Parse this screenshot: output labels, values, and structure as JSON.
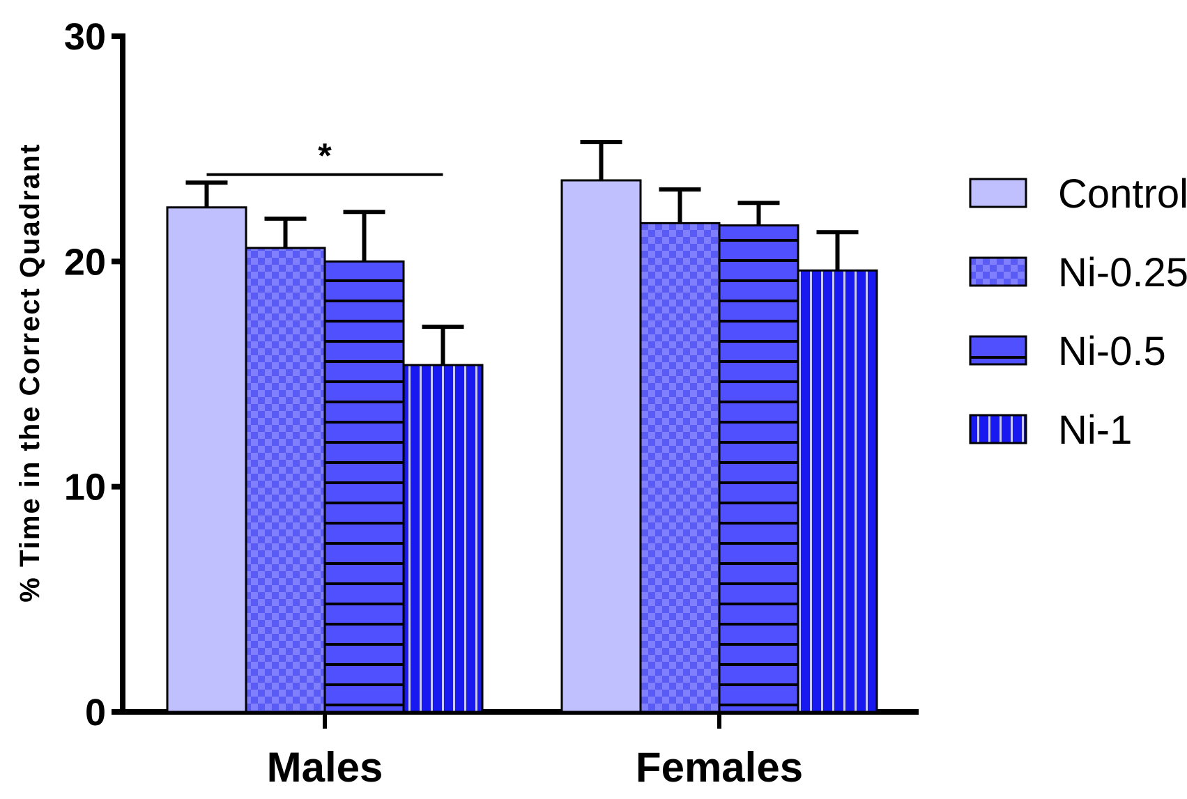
{
  "chart_data": {
    "type": "bar",
    "title": "",
    "xlabel": "",
    "ylabel": "% Time in the Correct Quadrant",
    "ylim": [
      0,
      30
    ],
    "yticks": [
      0,
      10,
      20,
      30
    ],
    "categories": [
      "Males",
      "Females"
    ],
    "series": [
      {
        "name": "Control",
        "values": [
          22.4,
          23.6
        ],
        "errors": [
          1.1,
          1.7
        ],
        "pattern": "solid",
        "color": "#c0c0ff"
      },
      {
        "name": "Ni-0.25",
        "values": [
          20.6,
          21.7
        ],
        "errors": [
          1.3,
          1.5
        ],
        "pattern": "checker",
        "color": "#7777ff"
      },
      {
        "name": "Ni-0.5",
        "values": [
          20.0,
          21.6
        ],
        "errors": [
          2.2,
          1.0
        ],
        "pattern": "hstripes",
        "color": "#5555ff"
      },
      {
        "name": "Ni-1",
        "values": [
          15.4,
          19.6
        ],
        "errors": [
          1.7,
          1.7
        ],
        "pattern": "vstripes",
        "color": "#2222ee"
      }
    ],
    "annotations": [
      {
        "text": "*",
        "category": "Males",
        "from_series": "Control",
        "to_series": "Ni-1",
        "y": 24.6
      }
    ],
    "legend_position": "right"
  }
}
